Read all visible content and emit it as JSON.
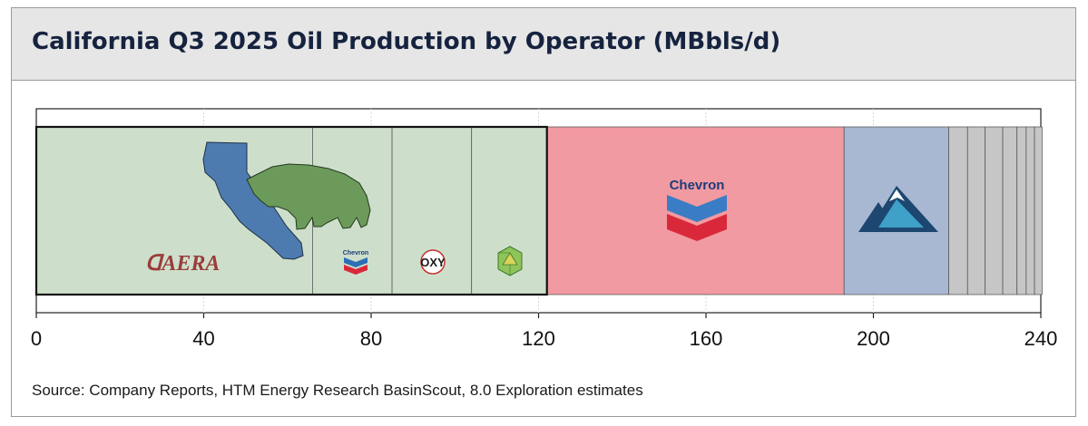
{
  "header": {
    "title": "California Q3 2025 Oil Production by Operator (MBbls/d)"
  },
  "source": "Source: Company Reports, HTM Energy Research BasinScout, 8.0 Exploration estimates",
  "chart_data": {
    "type": "bar",
    "title": "California Q3 2025 Oil Production by Operator (MBbls/d)",
    "orientation": "horizontal-stacked",
    "xlim": [
      0,
      240
    ],
    "xticks": [
      0,
      40,
      80,
      120,
      160,
      200,
      240
    ],
    "grid": true,
    "series": [
      {
        "name": "Aera",
        "value": 66,
        "color": "#cddfcb",
        "group": "combined"
      },
      {
        "name": "Chevron (within group)",
        "value": 19,
        "color": "#cddfcb",
        "group": "combined"
      },
      {
        "name": "Oxy",
        "value": 19,
        "color": "#cddfcb",
        "group": "combined"
      },
      {
        "name": "Green polyhedron operator",
        "value": 18,
        "color": "#cddfcb",
        "group": "combined"
      },
      {
        "name": "Chevron",
        "value": 71,
        "color": "#f29aa1"
      },
      {
        "name": "Mountain logo operator",
        "value": 25,
        "color": "#a8b8d2"
      },
      {
        "name": "Other 1",
        "value": 4.5,
        "color": "#c6c6c6"
      },
      {
        "name": "Other 2",
        "value": 4.2,
        "color": "#c6c6c6"
      },
      {
        "name": "Other 3",
        "value": 4.2,
        "color": "#c6c6c6"
      },
      {
        "name": "Other 4",
        "value": 3.4,
        "color": "#c6c6c6"
      },
      {
        "name": "Other 5",
        "value": 2.2,
        "color": "#c6c6c6"
      },
      {
        "name": "Other 6",
        "value": 2.0,
        "color": "#c6c6c6"
      },
      {
        "name": "Other 7",
        "value": 1.8,
        "color": "#c6c6c6"
      }
    ],
    "logos": {
      "aera": "ᗡAERA",
      "chevron_large": "Chevron",
      "chevron_small": "Chevron",
      "oxy": "OXY"
    }
  }
}
